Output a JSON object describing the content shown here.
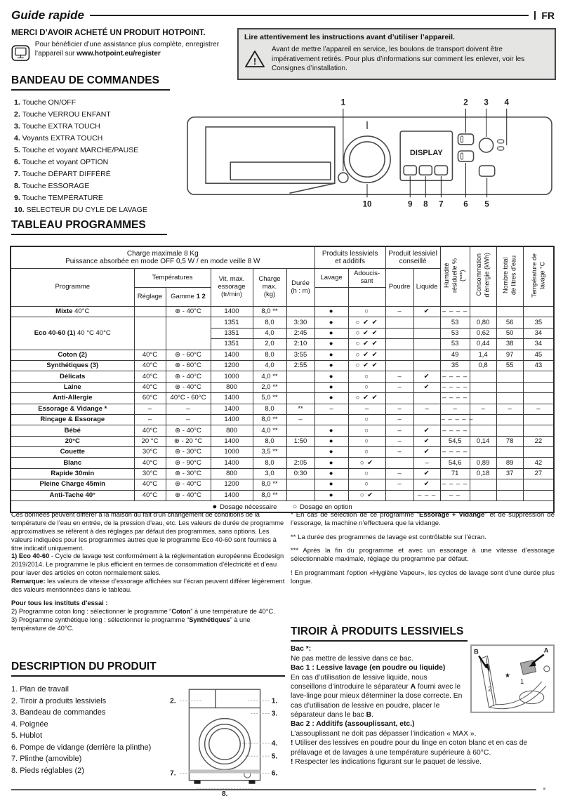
{
  "page": {
    "title": "Guide rapide",
    "lang": "FR"
  },
  "intro": {
    "thanks": "MERCI D’AVOIR ACHETÉ UN PRODUIT HOTPOINT.",
    "register_pre": "Pour bénéficier d’une assistance plus complète, enregistrer l’appareil sur ",
    "register_url": "www.hotpoint.eu/register",
    "warn_title": "Lire attentivement les instructions avant d’utiliser l’appareil.",
    "warn_body": "Avant de mettre l’appareil en service, les boulons de transport doivent être impérativement retirés. Pour plus d’informations sur comment les enlever, voir les Consignes d’installation."
  },
  "controls": {
    "heading": "BANDEAU DE COMMANDES",
    "items": [
      {
        "n": "1.",
        "t": "Touche ON/OFF"
      },
      {
        "n": "2.",
        "t": "Touche VERROU ENFANT"
      },
      {
        "n": "3.",
        "t": "Touche EXTRA TOUCH"
      },
      {
        "n": "4.",
        "t": "Voyants EXTRA TOUCH"
      },
      {
        "n": "5.",
        "t": "Touche et voyant MARCHE/PAUSE"
      },
      {
        "n": "6.",
        "t": "Touche et voyant OPTION"
      },
      {
        "n": "7.",
        "t": "Touche DÉPART DIFFÉRÉ"
      },
      {
        "n": "8.",
        "t": "Touche ESSORAGE"
      },
      {
        "n": "9.",
        "t": "Touche TEMPÉRATURE"
      },
      {
        "n": "10.",
        "t": "SÉLECTEUR DU CYLE DE LAVAGE"
      }
    ],
    "display": "DISPLAY",
    "callouts_top": [
      "1",
      "2",
      "3",
      "4"
    ],
    "callouts_bottom": [
      "10",
      "9",
      "8",
      "7",
      "6",
      "5"
    ]
  },
  "table": {
    "heading": "TABLEAU PROGRAMMES",
    "info": "Charge maximale 8 Kg\nPuissance absorbée en mode OFF 0,5 W / en mode veille 8 W",
    "h_programme": "Programme",
    "h_temperatures": "Températures",
    "h_reglage": "Réglage",
    "h_gamme": "Gamme",
    "h_gamme_b": "1 2",
    "h_vit": "Vit. max.\nessorage\n(tr/min)",
    "h_charge": "Charge\nmax.\n(kg)",
    "h_duree": "Durée\n(h : m)",
    "h_prod_add": "Produits lessiviels\net additifs",
    "h_lavage": "Lavage",
    "h_adouc": "Adoucis-\nsant",
    "h_prod_cons": "Produit lessiviel\nconseillé",
    "h_poudre": "Poudre",
    "h_liquide": "Liquide",
    "h_humidite": "Humidité\nrésiduelle %\n(***)",
    "h_conso": "Consommation\nd’énergie (kWh)",
    "h_litres": "Nombre total\nde litres d’eau",
    "h_temp": "Température de\nlavage °C",
    "rows": [
      {
        "b": "Mixte",
        "r": " 40°C",
        "span": 1,
        "c": [
          "",
          "⊛ - 40°C",
          "1400",
          "8,0 **",
          "",
          "●",
          "○",
          "–",
          "✔",
          "– – – –",
          "",
          "",
          ""
        ]
      },
      {
        "b": "Eco 40-60 (1)",
        "r": " 40 °C  40°C",
        "span": 3,
        "mrg": true,
        "c": [
          "1351",
          "8,0",
          "3:30",
          "●",
          "○ ✔ ✔",
          "",
          "",
          "53",
          "0,80",
          "56",
          "35"
        ]
      },
      {
        "sub": true,
        "c": [
          "1351",
          "4,0",
          "2:45",
          "●",
          "○ ✔ ✔",
          "",
          "",
          "53",
          "0,62",
          "50",
          "34"
        ]
      },
      {
        "sub": true,
        "c": [
          "1351",
          "2,0",
          "2:10",
          "●",
          "○ ✔ ✔",
          "",
          "",
          "53",
          "0,44",
          "38",
          "34"
        ]
      },
      {
        "b": "Coton (2)",
        "r": "",
        "span": 1,
        "c": [
          "40°C",
          "⊛ - 60°C",
          "1400",
          "8,0",
          "3:55",
          "●",
          "○ ✔ ✔",
          "",
          "",
          "49",
          "1,4",
          "97",
          "45"
        ]
      },
      {
        "b": "Synthétiques (3)",
        "r": "",
        "span": 1,
        "c": [
          "40°C",
          "⊛ - 60°C",
          "1200",
          "4,0",
          "2:55",
          "●",
          "○ ✔ ✔",
          "",
          "",
          "35",
          "0,8",
          "55",
          "43"
        ]
      },
      {
        "b": "Délicats",
        "r": "",
        "span": 1,
        "c": [
          "40°C",
          "⊛ - 40°C",
          "1000",
          "4,0 **",
          "",
          "●",
          "○",
          "–",
          "✔",
          "– – – –",
          "",
          "",
          ""
        ]
      },
      {
        "b": "Laine",
        "r": "",
        "span": 1,
        "c": [
          "40°C",
          "⊛ - 40°C",
          "800",
          "2,0 **",
          "",
          "●",
          "○",
          "–",
          "✔",
          "– – – –",
          "",
          "",
          ""
        ]
      },
      {
        "b": "Anti-Allergie",
        "r": "",
        "span": 1,
        "c": [
          "60°C",
          "40°C - 60°C",
          "1400",
          "5,0 **",
          "",
          "●",
          "○ ✔ ✔",
          "",
          "",
          "– – – –",
          "",
          "",
          ""
        ]
      },
      {
        "b": "Essorage & Vidange *",
        "r": "",
        "span": 1,
        "c": [
          "–",
          "–",
          "1400",
          "8,0",
          "**",
          "–",
          "–",
          "–",
          "–",
          "–",
          "–",
          "–",
          "–"
        ]
      },
      {
        "b": "Rinçage & Essorage",
        "r": "",
        "span": 1,
        "c": [
          "–",
          "–",
          "1400",
          "8,0 **",
          "–",
          "",
          "○",
          "–",
          "",
          "– – – – –",
          "",
          "",
          ""
        ]
      },
      {
        "b": "Bébé",
        "r": "",
        "span": 1,
        "c": [
          "40°C",
          "⊛ - 40°C",
          "800",
          "4,0 **",
          "",
          "●",
          "○",
          "–",
          "✔",
          "– – – –",
          "",
          "",
          ""
        ]
      },
      {
        "b": "20°C",
        "r": "",
        "span": 1,
        "c": [
          "20 °C",
          "⊛ - 20 °C",
          "1400",
          "8,0",
          "1:50",
          "●",
          "○",
          "–",
          "✔",
          "54,5",
          "0,14",
          "78",
          "22"
        ]
      },
      {
        "b": "Couette",
        "r": "",
        "span": 1,
        "c": [
          "30°C",
          "⊛ - 30°C",
          "1000",
          "3,5 **",
          "",
          "●",
          "○",
          "–",
          "✔",
          "– – – –",
          "",
          "",
          ""
        ]
      },
      {
        "b": "Blanc",
        "r": "",
        "span": 1,
        "c": [
          "40°C",
          "⊛ - 90°C",
          "1400",
          "8,0",
          "2:05",
          "●",
          "○ ✔",
          "",
          "–",
          "54,6",
          "0,89",
          "89",
          "42"
        ]
      },
      {
        "b": "Rapide 30min",
        "r": "",
        "span": 1,
        "c": [
          "30°C",
          "⊛ - 30°C",
          "800",
          "3,0",
          "0:30",
          "●",
          "○",
          "–",
          "✔",
          "71",
          "0,18",
          "37",
          "27"
        ]
      },
      {
        "b": "Pleine Charge 45min",
        "r": "",
        "span": 1,
        "c": [
          "40°C",
          "⊛ - 40°C",
          "1200",
          "8,0 **",
          "",
          "●",
          "○",
          "–",
          "✔",
          "– – – –",
          "",
          "",
          ""
        ]
      },
      {
        "b": "Anti-Tache 40°",
        "r": "",
        "span": 1,
        "c": [
          "40°C",
          "⊛ - 40°C",
          "1400",
          "8,0 **",
          "",
          "●",
          "○ ✔",
          "",
          "– – –",
          "– –",
          "",
          "",
          ""
        ]
      }
    ],
    "legend": [
      {
        "sym": "●",
        "t": "Dosage nécessaire"
      },
      {
        "sym": "○",
        "t": "Dosage en option"
      }
    ]
  },
  "footnotes": {
    "left": [
      [
        [
          "r",
          "Ces données peuvent différer à la maison du fait d’un changement de conditions de la température de l’eau en entrée, de la pression d’eau, etc. Les valeurs de durée de programme approximatives se réfèrent à des réglages par défaut des programmes, sans options. Les valeurs indiquées pour les programmes autres que le programme Eco 40-60 sont fournies à titre indicatif uniquement."
        ]
      ],
      [
        [
          "b",
          "1) Eco 40-60"
        ],
        [
          "r",
          " - Cycle de lavage test conformément à la réglementation européenne Écodesign 2019/2014. Le programme le plus efficient en termes de consommation d’électricité et d’eau pour laver des articles en coton normalement sales."
        ]
      ],
      [
        [
          "b",
          "Remarque:"
        ],
        [
          "r",
          " les valeurs de vitesse d’essorage affichées sur l’écran peuvent différer légèrement des valeurs mentionnées dans le tableau."
        ]
      ],
      [
        [
          "b",
          "Pour tous les instituts d’essai :"
        ]
      ],
      [
        [
          "r",
          "2)  Programme coton long : sélectionner le programme “"
        ],
        [
          "b",
          "Coton"
        ],
        [
          "r",
          "” à une température de 40°C."
        ]
      ],
      [
        [
          "r",
          "3)  Programme synthétique long : sélectionner le programme “"
        ],
        [
          "b",
          "Synthétiques"
        ],
        [
          "r",
          "” à une température de 40°C."
        ]
      ]
    ],
    "right": [
      [
        [
          "r",
          "* En cas de sélection de ce programme “"
        ],
        [
          "b",
          "Essorage + Vidange"
        ],
        [
          "r",
          "” et de suppression de l’essorage, la machine n’effectuera que la vidange."
        ]
      ],
      [
        [
          "r",
          "**  La durée des programmes de lavage est contrôlable sur l’écran."
        ]
      ],
      [
        [
          "r",
          "***  Après la fin du programme et avec un essorage à une vitesse d’essorage sélectionnable maximale, réglage du programme par défaut."
        ]
      ],
      [
        [
          "r",
          "! En programmant l’option «Hygiène Vapeur», les cycles de lavage sont d’une durée plus longue."
        ]
      ]
    ]
  },
  "description": {
    "heading": "DESCRIPTION DU PRODUIT",
    "items": [
      {
        "n": "1.",
        "t": "Plan de travail"
      },
      {
        "n": "2.",
        "t": "Tiroir à produits lessiviels"
      },
      {
        "n": "3.",
        "t": "Bandeau de commandes"
      },
      {
        "n": "4.",
        "t": "Poignée"
      },
      {
        "n": "5.",
        "t": "Hublot"
      },
      {
        "n": "6.",
        "t": "Pompe de vidange (derrière la plinthe)"
      },
      {
        "n": "7.",
        "t": "Plinthe (amovible)"
      },
      {
        "n": "8.",
        "t": "Pieds réglables (2)"
      }
    ],
    "callouts": [
      "2.",
      "1.",
      "3.",
      "4.",
      "5.",
      "6.",
      "7.",
      "8."
    ]
  },
  "tiroir": {
    "heading": "TIROIR À PRODUITS LESSIVIELS",
    "labels": {
      "B": "B",
      "A": "A",
      "n2": "2",
      "n1": "1",
      "star": "★"
    },
    "paras": [
      [
        [
          "b",
          "Bac *:"
        ]
      ],
      [
        [
          "r",
          "Ne pas mettre de lessive dans ce bac."
        ]
      ],
      [
        [
          "b",
          "Bac 1 : Lessive lavage (en poudre ou liquide)"
        ]
      ],
      [
        [
          "r",
          "En cas d’utilisation de lessive liquide, nous conseillons d’introduire le séparateur "
        ],
        [
          "b",
          "A"
        ],
        [
          "r",
          " fourni avec le lave-linge pour mieux déterminer la dose correcte. En cas d’utilisation de lessive en poudre, placer le séparateur dans le bac "
        ],
        [
          "b",
          "B"
        ],
        [
          "r",
          "."
        ]
      ],
      [
        [
          "b",
          "Bac 2 : Additifs (assouplissant, etc.)"
        ]
      ],
      [
        [
          "r",
          "L’assouplissant ne doit pas dépasser l’indication « MAX »."
        ]
      ],
      [
        [
          "b",
          "!"
        ],
        [
          "r",
          " Utiliser des lessives en poudre pour du linge en coton blanc et en cas de prélavage et de lavages à une température supérieure à 60°C."
        ]
      ],
      [
        [
          "b",
          "!"
        ],
        [
          "r",
          " Respecter les indications figurant sur le paquet de lessive."
        ]
      ]
    ]
  }
}
